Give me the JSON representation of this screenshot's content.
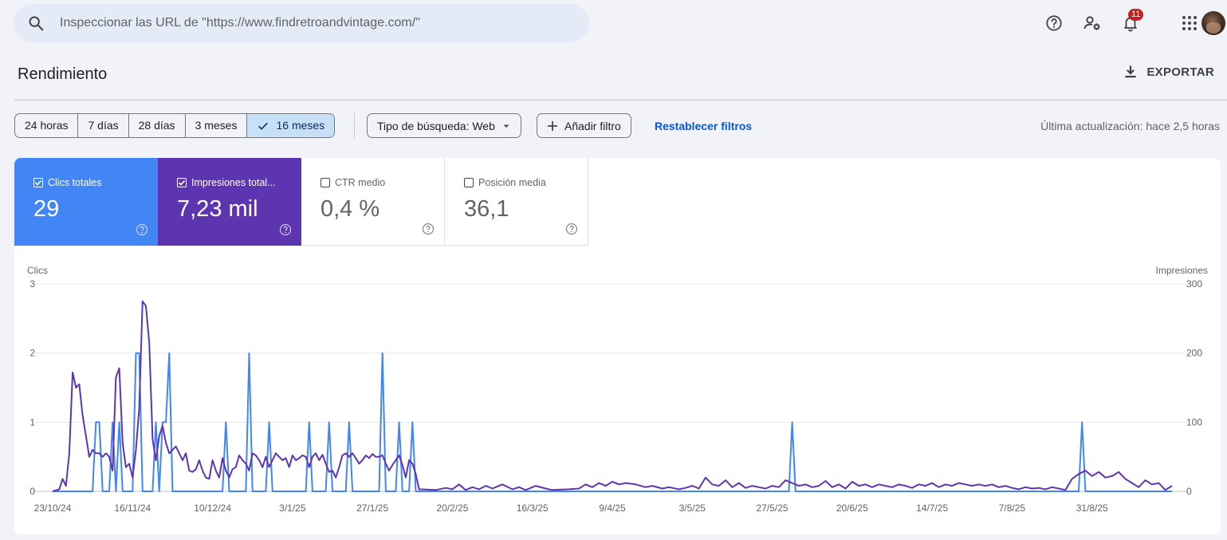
{
  "search": {
    "placeholder": "Inspeccionar las URL de \"https://www.findretroandvintage.com/\""
  },
  "topbar": {
    "notifications_count": "11"
  },
  "header": {
    "title": "Rendimiento",
    "export_label": "EXPORTAR"
  },
  "filters": {
    "ranges": [
      "24 horas",
      "7 días",
      "28 días",
      "3 meses",
      "16 meses"
    ],
    "active_range": "16 meses",
    "search_type": "Tipo de búsqueda: Web",
    "add_filter": "Añadir filtro",
    "reset": "Restablecer filtros",
    "last_update": "Última actualización: hace 2,5 horas"
  },
  "metrics": [
    {
      "label": "Clics totales",
      "value": "29",
      "checked": true,
      "color": "#4285f4"
    },
    {
      "label": "Impresiones total...",
      "value": "7,23 mil",
      "checked": true,
      "color": "#5e35b1"
    },
    {
      "label": "CTR medio",
      "value": "0,4 %",
      "checked": false
    },
    {
      "label": "Posición media",
      "value": "36,1",
      "checked": false
    }
  ],
  "chart_data": {
    "type": "line",
    "ylabel_left": "Clics",
    "ylabel_right": "Impresiones",
    "ylim_left": [
      0,
      3
    ],
    "ylim_right": [
      0,
      300
    ],
    "yticks_left": [
      "0",
      "1",
      "2",
      "3"
    ],
    "yticks_right": [
      "0",
      "100",
      "200",
      "300"
    ],
    "xticks": [
      "23/10/24",
      "16/11/24",
      "10/12/24",
      "3/1/25",
      "27/1/25",
      "20/2/25",
      "16/3/25",
      "9/4/25",
      "3/5/25",
      "27/5/25",
      "20/6/25",
      "14/7/25",
      "7/8/25",
      "31/8/25"
    ],
    "x_range_days": [
      0,
      336
    ],
    "grid": true,
    "series": [
      {
        "name": "Clics",
        "color": "#4285f4",
        "axis": "left",
        "points": [
          [
            0,
            0
          ],
          [
            12,
            0
          ],
          [
            13,
            1
          ],
          [
            14,
            1
          ],
          [
            15,
            0
          ],
          [
            17,
            0
          ],
          [
            18,
            1
          ],
          [
            19,
            0
          ],
          [
            20,
            1
          ],
          [
            21,
            0
          ],
          [
            24,
            0
          ],
          [
            25,
            2
          ],
          [
            26,
            2
          ],
          [
            27,
            0
          ],
          [
            30,
            0
          ],
          [
            31,
            1
          ],
          [
            32,
            0
          ],
          [
            33,
            1
          ],
          [
            34,
            1
          ],
          [
            35,
            2
          ],
          [
            36,
            0
          ],
          [
            51,
            0
          ],
          [
            52,
            1
          ],
          [
            53,
            0
          ],
          [
            58,
            0
          ],
          [
            59,
            2
          ],
          [
            60,
            0
          ],
          [
            64,
            0
          ],
          [
            65,
            1
          ],
          [
            66,
            0
          ],
          [
            76,
            0
          ],
          [
            77,
            1
          ],
          [
            78,
            0
          ],
          [
            82,
            0
          ],
          [
            83,
            1
          ],
          [
            84,
            0
          ],
          [
            88,
            0
          ],
          [
            89,
            1
          ],
          [
            90,
            0
          ],
          [
            98,
            0
          ],
          [
            99,
            2
          ],
          [
            100,
            0
          ],
          [
            103,
            0
          ],
          [
            104,
            1
          ],
          [
            105,
            0
          ],
          [
            107,
            0
          ],
          [
            108,
            1
          ],
          [
            109,
            0
          ],
          [
            221,
            0
          ],
          [
            222,
            1
          ],
          [
            223,
            0
          ],
          [
            308,
            0
          ],
          [
            309,
            1
          ],
          [
            310,
            0
          ],
          [
            336,
            0
          ]
        ]
      },
      {
        "name": "Impresiones",
        "color": "#5e35b1",
        "axis": "right",
        "points": [
          [
            0,
            0
          ],
          [
            2,
            3
          ],
          [
            3,
            18
          ],
          [
            4,
            8
          ],
          [
            5,
            55
          ],
          [
            6,
            172
          ],
          [
            7,
            150
          ],
          [
            8,
            155
          ],
          [
            9,
            110
          ],
          [
            10,
            80
          ],
          [
            11,
            50
          ],
          [
            12,
            60
          ],
          [
            13,
            55
          ],
          [
            14,
            55
          ],
          [
            15,
            50
          ],
          [
            16,
            55
          ],
          [
            17,
            50
          ],
          [
            18,
            30
          ],
          [
            19,
            165
          ],
          [
            20,
            178
          ],
          [
            21,
            70
          ],
          [
            22,
            35
          ],
          [
            23,
            40
          ],
          [
            24,
            20
          ],
          [
            25,
            60
          ],
          [
            26,
            120
          ],
          [
            27,
            275
          ],
          [
            28,
            268
          ],
          [
            29,
            215
          ],
          [
            30,
            75
          ],
          [
            31,
            45
          ],
          [
            32,
            80
          ],
          [
            33,
            95
          ],
          [
            34,
            70
          ],
          [
            35,
            55
          ],
          [
            36,
            60
          ],
          [
            37,
            65
          ],
          [
            38,
            55
          ],
          [
            39,
            45
          ],
          [
            40,
            55
          ],
          [
            41,
            30
          ],
          [
            42,
            28
          ],
          [
            43,
            32
          ],
          [
            44,
            45
          ],
          [
            45,
            30
          ],
          [
            46,
            20
          ],
          [
            47,
            18
          ],
          [
            48,
            45
          ],
          [
            49,
            30
          ],
          [
            50,
            20
          ],
          [
            51,
            48
          ],
          [
            52,
            30
          ],
          [
            53,
            20
          ],
          [
            54,
            32
          ],
          [
            55,
            35
          ],
          [
            56,
            52
          ],
          [
            57,
            45
          ],
          [
            58,
            40
          ],
          [
            59,
            30
          ],
          [
            60,
            55
          ],
          [
            61,
            52
          ],
          [
            62,
            45
          ],
          [
            63,
            35
          ],
          [
            64,
            50
          ],
          [
            65,
            35
          ],
          [
            66,
            45
          ],
          [
            67,
            55
          ],
          [
            68,
            50
          ],
          [
            69,
            45
          ],
          [
            70,
            48
          ],
          [
            71,
            35
          ],
          [
            72,
            52
          ],
          [
            73,
            45
          ],
          [
            74,
            48
          ],
          [
            75,
            52
          ],
          [
            76,
            50
          ],
          [
            77,
            35
          ],
          [
            78,
            50
          ],
          [
            79,
            55
          ],
          [
            80,
            45
          ],
          [
            81,
            53
          ],
          [
            82,
            40
          ],
          [
            83,
            28
          ],
          [
            84,
            30
          ],
          [
            85,
            20
          ],
          [
            86,
            35
          ],
          [
            87,
            52
          ],
          [
            88,
            55
          ],
          [
            89,
            50
          ],
          [
            90,
            55
          ],
          [
            91,
            48
          ],
          [
            92,
            40
          ],
          [
            93,
            45
          ],
          [
            94,
            52
          ],
          [
            95,
            48
          ],
          [
            96,
            54
          ],
          [
            97,
            50
          ],
          [
            98,
            50
          ],
          [
            99,
            52
          ],
          [
            100,
            40
          ],
          [
            101,
            30
          ],
          [
            102,
            38
          ],
          [
            103,
            45
          ],
          [
            104,
            52
          ],
          [
            105,
            38
          ],
          [
            106,
            20
          ],
          [
            107,
            45
          ],
          [
            108,
            40
          ],
          [
            109,
            25
          ],
          [
            110,
            3
          ],
          [
            115,
            2
          ],
          [
            118,
            5
          ],
          [
            120,
            3
          ],
          [
            122,
            10
          ],
          [
            124,
            2
          ],
          [
            126,
            6
          ],
          [
            128,
            3
          ],
          [
            130,
            8
          ],
          [
            132,
            4
          ],
          [
            135,
            10
          ],
          [
            138,
            3
          ],
          [
            140,
            6
          ],
          [
            142,
            2
          ],
          [
            145,
            8
          ],
          [
            148,
            4
          ],
          [
            150,
            2
          ],
          [
            155,
            3
          ],
          [
            158,
            4
          ],
          [
            160,
            10
          ],
          [
            162,
            6
          ],
          [
            164,
            12
          ],
          [
            166,
            8
          ],
          [
            168,
            14
          ],
          [
            170,
            10
          ],
          [
            172,
            12
          ],
          [
            175,
            10
          ],
          [
            178,
            6
          ],
          [
            180,
            8
          ],
          [
            183,
            4
          ],
          [
            185,
            6
          ],
          [
            188,
            3
          ],
          [
            190,
            5
          ],
          [
            192,
            8
          ],
          [
            194,
            4
          ],
          [
            196,
            20
          ],
          [
            198,
            10
          ],
          [
            200,
            8
          ],
          [
            202,
            16
          ],
          [
            204,
            6
          ],
          [
            206,
            12
          ],
          [
            208,
            5
          ],
          [
            210,
            8
          ],
          [
            212,
            6
          ],
          [
            214,
            4
          ],
          [
            216,
            8
          ],
          [
            218,
            6
          ],
          [
            220,
            16
          ],
          [
            222,
            12
          ],
          [
            224,
            8
          ],
          [
            226,
            10
          ],
          [
            228,
            6
          ],
          [
            230,
            8
          ],
          [
            232,
            15
          ],
          [
            234,
            6
          ],
          [
            236,
            10
          ],
          [
            238,
            4
          ],
          [
            240,
            14
          ],
          [
            242,
            8
          ],
          [
            244,
            10
          ],
          [
            246,
            6
          ],
          [
            248,
            10
          ],
          [
            250,
            8
          ],
          [
            252,
            6
          ],
          [
            254,
            10
          ],
          [
            256,
            8
          ],
          [
            258,
            5
          ],
          [
            260,
            10
          ],
          [
            262,
            8
          ],
          [
            264,
            12
          ],
          [
            266,
            6
          ],
          [
            268,
            10
          ],
          [
            270,
            8
          ],
          [
            272,
            12
          ],
          [
            274,
            10
          ],
          [
            276,
            8
          ],
          [
            278,
            10
          ],
          [
            280,
            8
          ],
          [
            282,
            10
          ],
          [
            284,
            6
          ],
          [
            286,
            8
          ],
          [
            288,
            5
          ],
          [
            290,
            3
          ],
          [
            292,
            6
          ],
          [
            294,
            4
          ],
          [
            296,
            5
          ],
          [
            298,
            3
          ],
          [
            300,
            6
          ],
          [
            302,
            4
          ],
          [
            304,
            2
          ],
          [
            306,
            18
          ],
          [
            308,
            25
          ],
          [
            310,
            30
          ],
          [
            312,
            22
          ],
          [
            314,
            28
          ],
          [
            316,
            20
          ],
          [
            318,
            22
          ],
          [
            320,
            28
          ],
          [
            322,
            18
          ],
          [
            324,
            12
          ],
          [
            326,
            6
          ],
          [
            328,
            16
          ],
          [
            330,
            10
          ],
          [
            332,
            12
          ],
          [
            334,
            2
          ],
          [
            336,
            8
          ]
        ]
      }
    ]
  }
}
